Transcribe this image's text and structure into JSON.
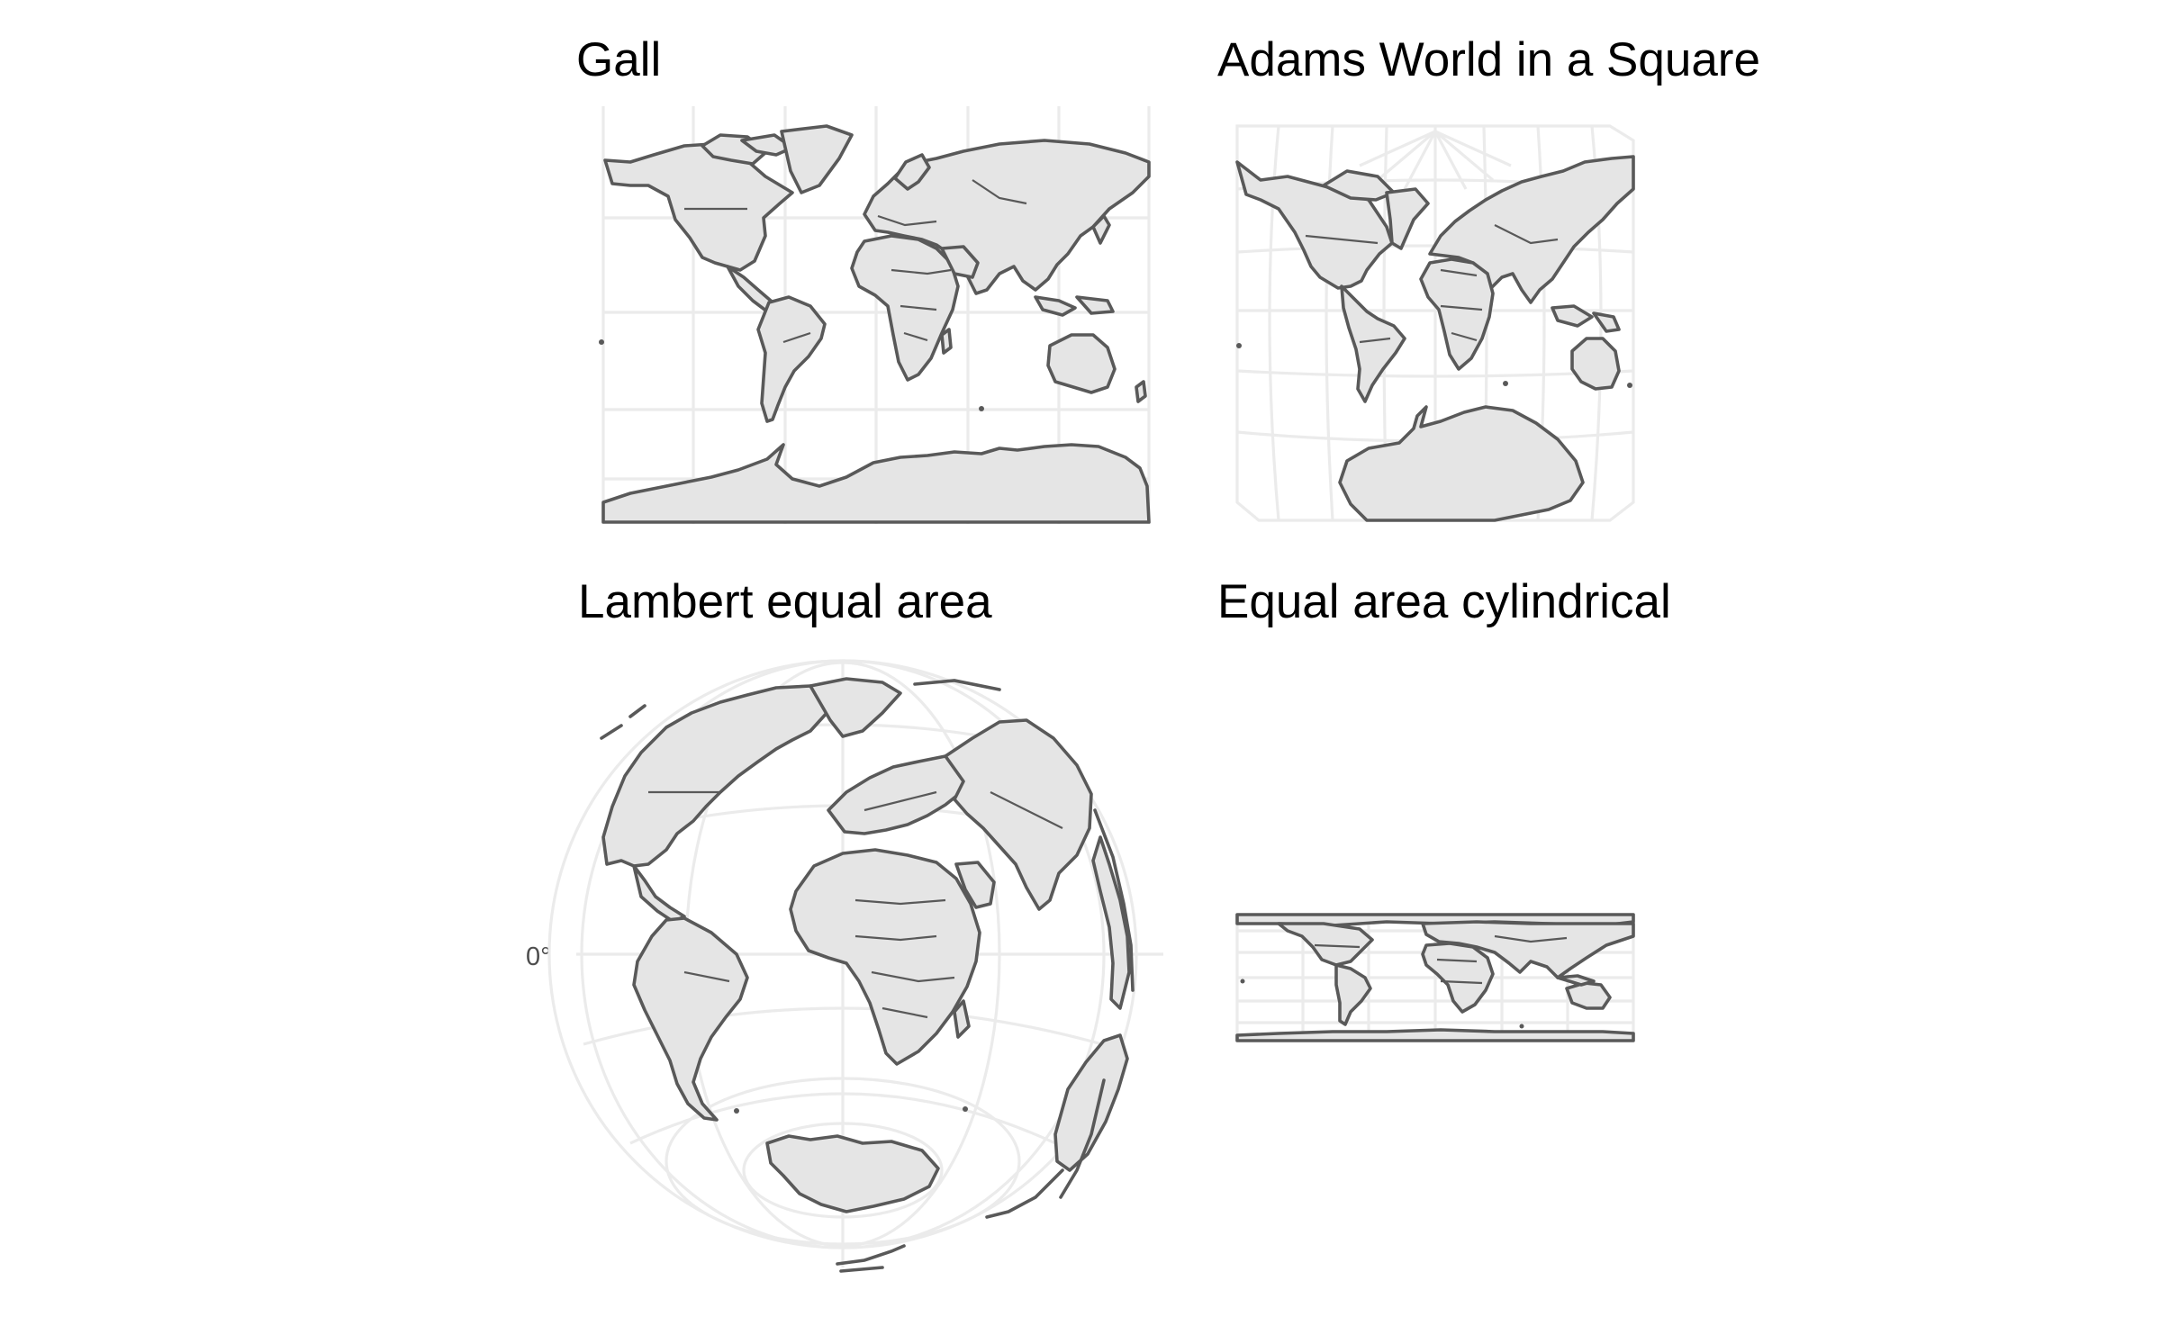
{
  "panels": {
    "gall": {
      "title": "Gall"
    },
    "adams": {
      "title": "Adams World in a Square"
    },
    "lambert": {
      "title": "Lambert equal area",
      "axis_label": "0°"
    },
    "cylindrical": {
      "title": "Equal area cylindrical"
    }
  },
  "colors": {
    "land_fill": "#e5e5e5",
    "land_outline": "#595959",
    "graticule": "#ebebeb",
    "background": "#ffffff"
  }
}
